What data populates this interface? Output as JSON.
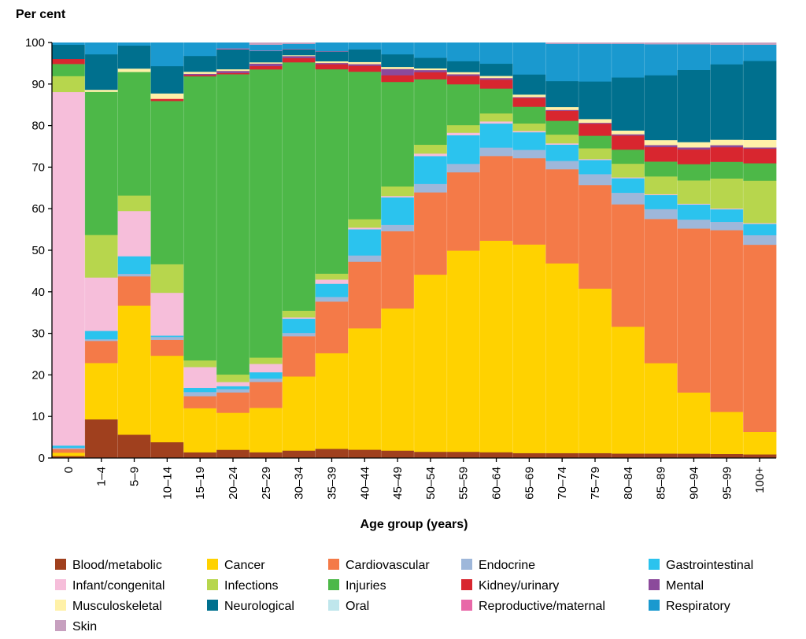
{
  "chart_data": {
    "type": "bar",
    "stacked": true,
    "title": "",
    "ylabel": "Per cent",
    "xlabel": "Age group (years)",
    "ylim": [
      0,
      100
    ],
    "yticks": [
      0,
      10,
      20,
      30,
      40,
      50,
      60,
      70,
      80,
      90,
      100
    ],
    "categories": [
      "0",
      "1–4",
      "5–9",
      "10–14",
      "15–19",
      "20–24",
      "25–29",
      "30–34",
      "35–39",
      "40–44",
      "45–49",
      "50–54",
      "55–59",
      "60–64",
      "65–69",
      "70–74",
      "75–79",
      "80–84",
      "85–89",
      "90–94",
      "95–99",
      "100+"
    ],
    "legend_position": "bottom",
    "series": [
      {
        "name": "Blood/metabolic",
        "color": "#A0401E",
        "values": [
          0.5,
          9.3,
          5.6,
          3.8,
          1.4,
          2.0,
          1.4,
          1.8,
          2.2,
          2.0,
          1.8,
          1.5,
          1.5,
          1.4,
          1.2,
          1.2,
          1.2,
          1.1,
          1.1,
          1.1,
          1.0,
          0.9
        ]
      },
      {
        "name": "Cancer",
        "color": "#FFD200",
        "values": [
          0.8,
          13.5,
          30.8,
          20.6,
          10.6,
          8.9,
          10.6,
          17.7,
          22.6,
          28.8,
          34.0,
          42.0,
          47.8,
          50.2,
          49.8,
          45.4,
          39.4,
          30.6,
          21.9,
          15.0,
          10.1,
          5.4
        ]
      },
      {
        "name": "Cardiovascular",
        "color": "#F47A48",
        "values": [
          0.9,
          5.3,
          7.0,
          3.8,
          2.9,
          4.9,
          6.2,
          9.6,
          12.2,
          15.8,
          18.5,
          19.5,
          18.6,
          20.1,
          20.6,
          22.5,
          24.8,
          29.5,
          34.9,
          40.2,
          43.6,
          45.0
        ]
      },
      {
        "name": "Endocrine",
        "color": "#9EB7DA",
        "values": [
          0.3,
          0.4,
          0.6,
          0.7,
          1.0,
          0.8,
          0.8,
          0.8,
          1.1,
          1.5,
          1.5,
          2.0,
          2.0,
          2.0,
          2.0,
          2.0,
          2.6,
          2.8,
          2.4,
          2.2,
          2.0,
          2.3
        ]
      },
      {
        "name": "Gastrointestinal",
        "color": "#2BC3EE",
        "values": [
          0.5,
          2.0,
          4.2,
          0.3,
          1.0,
          0.7,
          1.5,
          3.4,
          3.1,
          6.2,
          6.6,
          6.6,
          6.8,
          5.7,
          4.2,
          3.9,
          3.4,
          3.5,
          3.4,
          3.7,
          3.0,
          2.7
        ]
      },
      {
        "name": "Infant/congenital",
        "color": "#F6BEDA",
        "values": [
          84.5,
          12.8,
          10.8,
          10.2,
          5.0,
          1.0,
          2.0,
          0.3,
          1.0,
          0.4,
          0.3,
          0.6,
          0.6,
          0.5,
          0.3,
          0.3,
          0.2,
          0.2,
          0.2,
          0.2,
          0.2,
          0.2
        ]
      },
      {
        "name": "Infections",
        "color": "#B7D64D",
        "values": [
          3.8,
          10.2,
          3.7,
          6.8,
          1.6,
          1.8,
          1.5,
          1.6,
          1.4,
          2.0,
          2.3,
          2.1,
          1.8,
          1.9,
          1.8,
          2.1,
          2.6,
          3.3,
          4.3,
          5.7,
          7.2,
          10.2
        ]
      },
      {
        "name": "Injuries",
        "color": "#4DB848",
        "values": [
          2.9,
          34.3,
          29.5,
          38.9,
          68.3,
          72.2,
          68.8,
          59.3,
          48.3,
          35.0,
          25.0,
          15.5,
          9.7,
          5.9,
          4.0,
          3.3,
          3.0,
          3.4,
          3.6,
          4.0,
          4.0,
          4.2
        ]
      },
      {
        "name": "Kidney/urinary",
        "color": "#D8262F",
        "values": [
          1.2,
          0.0,
          0.0,
          0.5,
          0.3,
          0.3,
          0.8,
          1.0,
          1.2,
          1.4,
          1.6,
          1.7,
          2.0,
          2.1,
          2.1,
          2.4,
          2.9,
          3.4,
          3.5,
          3.6,
          3.5,
          3.5
        ]
      },
      {
        "name": "Mental",
        "color": "#8B4A9B",
        "values": [
          0.0,
          0.0,
          0.0,
          0.0,
          0.3,
          0.5,
          0.6,
          0.5,
          0.3,
          0.4,
          1.5,
          0.5,
          0.4,
          0.4,
          0.2,
          0.2,
          0.2,
          0.3,
          0.5,
          0.5,
          0.5,
          0.3
        ]
      },
      {
        "name": "Musculoskeletal",
        "color": "#FFF1A8",
        "values": [
          0.0,
          0.5,
          0.8,
          1.3,
          0.5,
          0.4,
          0.3,
          0.2,
          0.4,
          0.5,
          0.5,
          0.4,
          0.5,
          0.5,
          0.6,
          0.7,
          0.9,
          0.9,
          1.2,
          1.3,
          1.3,
          1.8
        ]
      },
      {
        "name": "Neurological",
        "color": "#00708E",
        "values": [
          3.4,
          8.5,
          5.5,
          6.5,
          3.8,
          4.8,
          2.7,
          1.4,
          2.3,
          3.0,
          3.0,
          2.5,
          2.6,
          2.9,
          4.8,
          6.2,
          9.0,
          12.8,
          15.7,
          17.7,
          18.1,
          19.0
        ]
      },
      {
        "name": "Oral",
        "color": "#BFE6EC",
        "values": [
          0.0,
          0.0,
          0.0,
          0.0,
          0.0,
          0.0,
          0.0,
          0.0,
          0.0,
          0.0,
          0.0,
          0.0,
          0.0,
          0.0,
          0.0,
          0.0,
          0.0,
          0.0,
          0.0,
          0.0,
          0.0,
          0.0
        ]
      },
      {
        "name": "Reproductive/maternal",
        "color": "#E868A8",
        "values": [
          0.0,
          0.0,
          0.0,
          0.0,
          0.0,
          0.2,
          0.1,
          0.1,
          0.1,
          0.0,
          0.0,
          0.0,
          0.0,
          0.0,
          0.0,
          0.0,
          0.0,
          0.0,
          0.0,
          0.0,
          0.0,
          0.0
        ]
      },
      {
        "name": "Respiratory",
        "color": "#1A99CF",
        "values": [
          0.5,
          2.8,
          0.7,
          5.6,
          3.2,
          1.4,
          1.4,
          1.2,
          2.0,
          1.6,
          2.8,
          3.6,
          4.4,
          5.0,
          7.6,
          8.9,
          9.0,
          8.1,
          7.5,
          6.3,
          4.7,
          3.9
        ]
      },
      {
        "name": "Skin",
        "color": "#C7A0BF",
        "values": [
          0.0,
          0.0,
          0.0,
          0.0,
          0.0,
          0.0,
          0.5,
          0.3,
          0.0,
          0.0,
          0.0,
          0.0,
          0.0,
          0.0,
          0.0,
          0.3,
          0.3,
          0.3,
          0.4,
          0.4,
          0.5,
          0.5
        ]
      }
    ],
    "legend_order": [
      "Blood/metabolic",
      "Cancer",
      "Cardiovascular",
      "Endocrine",
      "Gastrointestinal",
      "Infant/congenital",
      "Infections",
      "Injuries",
      "Kidney/urinary",
      "Mental",
      "Musculoskeletal",
      "Neurological",
      "Oral",
      "Reproductive/maternal",
      "Respiratory",
      "Skin"
    ],
    "grid": false
  }
}
